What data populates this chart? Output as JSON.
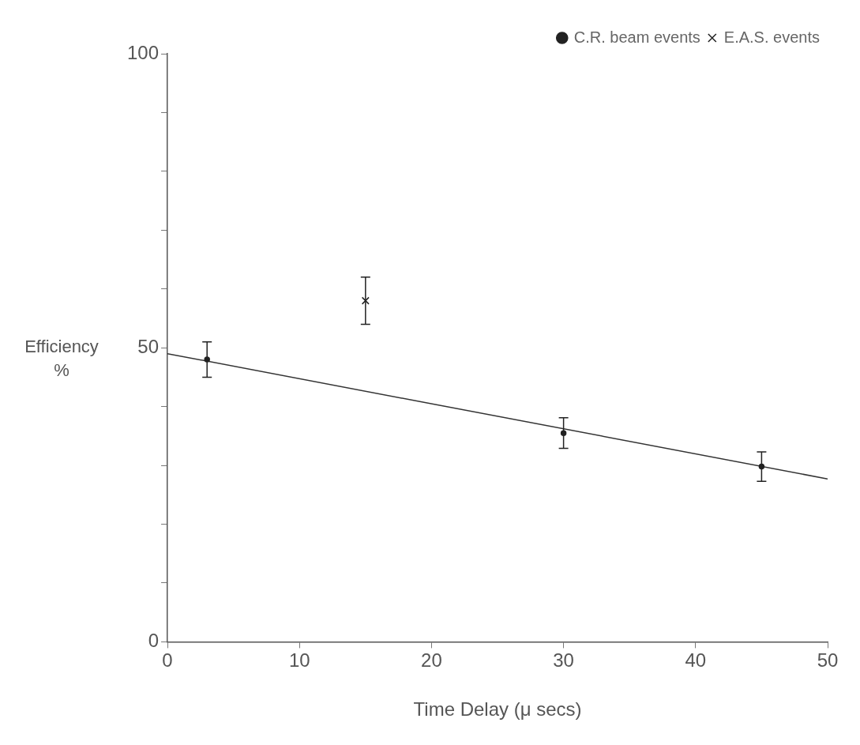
{
  "chart_data": {
    "type": "scatter",
    "xlabel": "Time Delay (μ secs)",
    "ylabel": "Efficiency %",
    "xlim": [
      0,
      50
    ],
    "xticks": [
      0,
      10,
      20,
      30,
      40,
      50
    ],
    "ylim": [
      0,
      100
    ],
    "yticks": [
      0,
      {
        "value": 10,
        "label": null
      },
      {
        "value": 20,
        "label": null
      },
      {
        "value": 30,
        "label": null
      },
      {
        "value": 40,
        "label": null
      },
      50,
      {
        "value": 60,
        "label": null
      },
      {
        "value": 70,
        "label": null
      },
      {
        "value": 80,
        "label": null
      },
      {
        "value": 90,
        "label": null
      },
      100
    ],
    "grid": false,
    "legend": "top right",
    "series": [
      {
        "name": "C.R. beam events",
        "marker": "circle",
        "color": "#222222",
        "x": [
          3,
          30,
          45
        ],
        "values": [
          48,
          35.5,
          29.8
        ],
        "errors": [
          3,
          2.6,
          2.5
        ]
      },
      {
        "name": "E.A.S. events",
        "marker": "cross",
        "color": "#222222",
        "x": [
          15
        ],
        "values": [
          58
        ],
        "errors": [
          4
        ]
      },
      {
        "type": "line",
        "color": "#333333",
        "x": [
          0,
          50
        ],
        "values": [
          49,
          27.7
        ]
      }
    ]
  }
}
